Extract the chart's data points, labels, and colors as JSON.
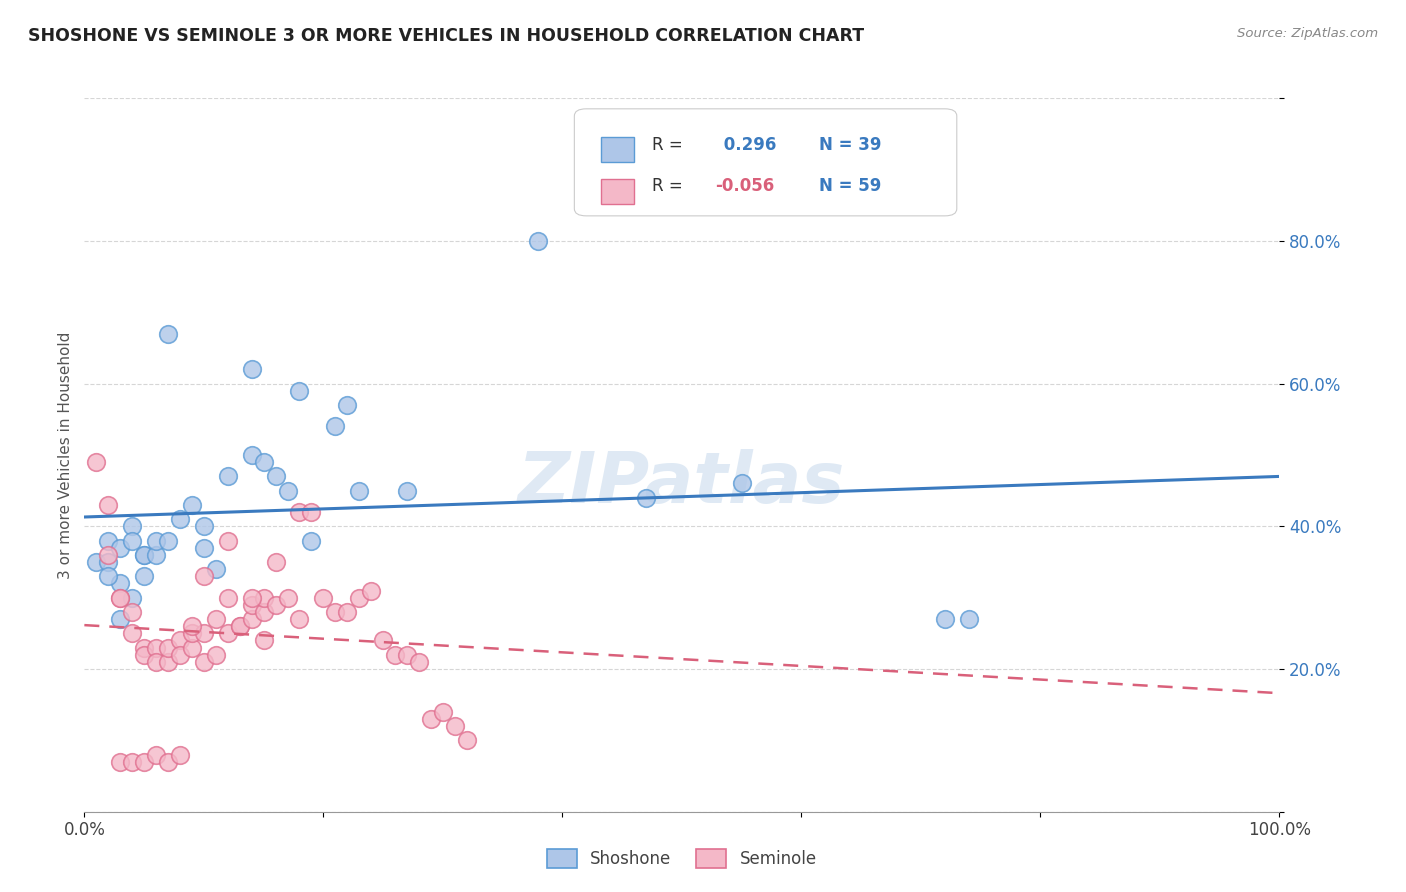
{
  "title": "SHOSHONE VS SEMINOLE 3 OR MORE VEHICLES IN HOUSEHOLD CORRELATION CHART",
  "source": "Source: ZipAtlas.com",
  "ylabel": "3 or more Vehicles in Household",
  "r_shoshone": 0.296,
  "n_shoshone": 39,
  "r_seminole": -0.056,
  "n_seminole": 59,
  "shoshone_color": "#aec6e8",
  "seminole_color": "#f4b8c8",
  "shoshone_edge_color": "#5b9bd5",
  "seminole_edge_color": "#e07090",
  "shoshone_line_color": "#3a7abf",
  "seminole_line_color": "#d9607a",
  "legend_labels": [
    "Shoshone",
    "Seminole"
  ],
  "shoshone_x": [
    0.38,
    0.07,
    0.14,
    0.18,
    0.22,
    0.21,
    0.14,
    0.16,
    0.02,
    0.03,
    0.04,
    0.04,
    0.05,
    0.05,
    0.05,
    0.06,
    0.06,
    0.07,
    0.08,
    0.09,
    0.1,
    0.1,
    0.11,
    0.12,
    0.15,
    0.17,
    0.19,
    0.23,
    0.27,
    0.72,
    0.74,
    0.55,
    0.47,
    0.01,
    0.02,
    0.03,
    0.02,
    0.04,
    0.03
  ],
  "shoshone_y": [
    0.8,
    0.67,
    0.62,
    0.59,
    0.57,
    0.54,
    0.5,
    0.47,
    0.38,
    0.37,
    0.4,
    0.38,
    0.36,
    0.36,
    0.33,
    0.36,
    0.38,
    0.38,
    0.41,
    0.43,
    0.4,
    0.37,
    0.34,
    0.47,
    0.49,
    0.45,
    0.38,
    0.45,
    0.45,
    0.27,
    0.27,
    0.46,
    0.44,
    0.35,
    0.35,
    0.32,
    0.33,
    0.3,
    0.27
  ],
  "seminole_x": [
    0.01,
    0.02,
    0.02,
    0.03,
    0.03,
    0.04,
    0.04,
    0.05,
    0.05,
    0.06,
    0.06,
    0.07,
    0.07,
    0.08,
    0.08,
    0.09,
    0.09,
    0.1,
    0.1,
    0.11,
    0.11,
    0.12,
    0.12,
    0.13,
    0.13,
    0.14,
    0.14,
    0.15,
    0.15,
    0.16,
    0.17,
    0.18,
    0.19,
    0.2,
    0.21,
    0.22,
    0.23,
    0.24,
    0.25,
    0.26,
    0.27,
    0.28,
    0.29,
    0.3,
    0.31,
    0.32,
    0.16,
    0.18,
    0.03,
    0.04,
    0.05,
    0.06,
    0.07,
    0.08,
    0.09,
    0.1,
    0.12,
    0.14,
    0.15
  ],
  "seminole_y": [
    0.49,
    0.43,
    0.36,
    0.3,
    0.3,
    0.28,
    0.25,
    0.23,
    0.22,
    0.23,
    0.21,
    0.21,
    0.23,
    0.24,
    0.22,
    0.23,
    0.25,
    0.21,
    0.25,
    0.22,
    0.27,
    0.25,
    0.3,
    0.26,
    0.26,
    0.27,
    0.29,
    0.28,
    0.3,
    0.29,
    0.3,
    0.42,
    0.42,
    0.3,
    0.28,
    0.28,
    0.3,
    0.31,
    0.24,
    0.22,
    0.22,
    0.21,
    0.13,
    0.14,
    0.12,
    0.1,
    0.35,
    0.27,
    0.07,
    0.07,
    0.07,
    0.08,
    0.07,
    0.08,
    0.26,
    0.33,
    0.38,
    0.3,
    0.24
  ],
  "xlim": [
    0.0,
    1.0
  ],
  "ylim": [
    0.0,
    1.0
  ],
  "yticks": [
    0.2,
    0.4,
    0.6,
    0.8
  ],
  "ytick_labels": [
    "20.0%",
    "40.0%",
    "60.0%",
    "80.0%"
  ],
  "xticks": [
    0.0,
    1.0
  ],
  "xtick_labels": [
    "0.0%",
    "100.0%"
  ]
}
